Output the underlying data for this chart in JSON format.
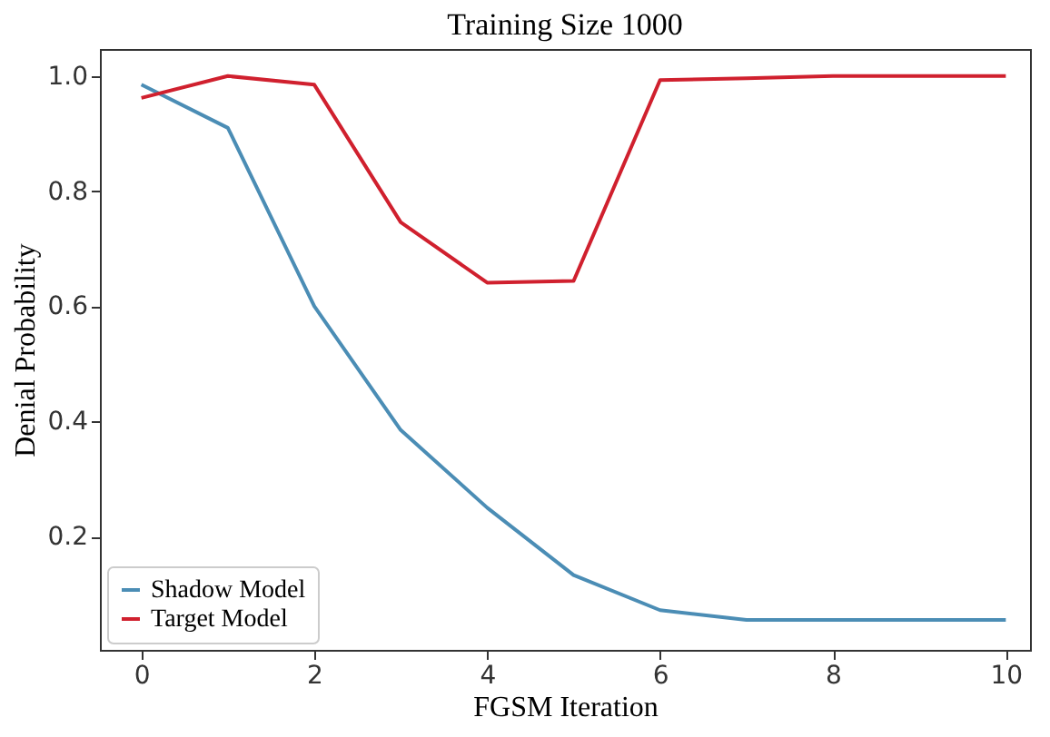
{
  "chart_data": {
    "type": "line",
    "title": "Training Size 1000",
    "xlabel": "FGSM Iteration",
    "ylabel": "Denial Probability",
    "x": [
      0,
      1,
      2,
      3,
      4,
      5,
      6,
      7,
      8,
      9,
      10
    ],
    "series": [
      {
        "name": "Shadow Model",
        "color": "#4b8db5",
        "values": [
          0.985,
          0.91,
          0.6,
          0.385,
          0.25,
          0.133,
          0.072,
          0.055,
          0.055,
          0.055,
          0.055
        ]
      },
      {
        "name": "Target Model",
        "color": "#d0202e",
        "values": [
          0.962,
          1.0,
          0.985,
          0.746,
          0.641,
          0.644,
          0.993,
          0.996,
          1.0,
          1.0,
          1.0
        ]
      }
    ],
    "xlim": [
      -0.48,
      10.28
    ],
    "ylim": [
      0.003,
      1.047
    ],
    "xticks": [
      0,
      2,
      4,
      6,
      8,
      10
    ],
    "yticks": [
      {
        "value": 0.2,
        "label": "0.2"
      },
      {
        "value": 0.4,
        "label": "0.4"
      },
      {
        "value": 0.6,
        "label": "0.6"
      },
      {
        "value": 0.8,
        "label": "0.8"
      },
      {
        "value": 1,
        "label": "1.0"
      }
    ],
    "grid": false,
    "legend": "bottom left",
    "marker": "none",
    "line_style": "solid"
  }
}
